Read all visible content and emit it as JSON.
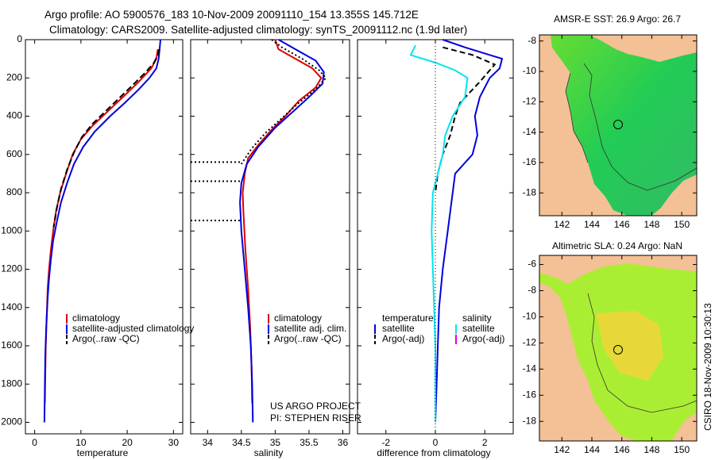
{
  "title_line1": "Argo profile: AO 5900576_183 10-Nov-2009 20091110_154 13.355S 145.712E",
  "title_line2": "Climatology: CARS2009. Satellite-adjusted climatology: synTS_20091112.nc (1.9d later)",
  "credit_project": "US ARGO PROJECT",
  "credit_pi": "PI: STEPHEN RISER",
  "footer_stamp": "CSIRO 18-Nov-2009 10:30:13",
  "colors": {
    "climatology": "#dd0000",
    "satellite": "#0000dd",
    "argo": "#000000",
    "salinity_satellite": "#00e5ee",
    "salinity_argo": "#dd00dd"
  },
  "chart_data": [
    {
      "type": "line",
      "xlabel": "temperature",
      "ylabel": "",
      "xlim": [
        -2,
        32
      ],
      "ylim": [
        2060,
        0
      ],
      "xticks": [
        0,
        10,
        20,
        30
      ],
      "yticks": [
        0,
        200,
        400,
        600,
        800,
        1000,
        1200,
        1400,
        1600,
        1800,
        2000
      ],
      "legend": {
        "placement": "bottom-right",
        "entries": [
          "climatology",
          "satellite-adjusted climatology",
          "Argo(..raw -QC)"
        ]
      },
      "series": [
        {
          "name": "climatology",
          "color": "#dd0000",
          "dash": "",
          "points": [
            [
              26.6,
              50
            ],
            [
              26.3,
              100
            ],
            [
              25.2,
              150
            ],
            [
              22.5,
              220
            ],
            [
              19.5,
              290
            ],
            [
              16.0,
              370
            ],
            [
              12.5,
              450
            ],
            [
              10.0,
              520
            ],
            [
              8.2,
              600
            ],
            [
              6.8,
              700
            ],
            [
              5.5,
              800
            ],
            [
              4.6,
              900
            ],
            [
              4.0,
              1000
            ],
            [
              3.5,
              1100
            ],
            [
              3.1,
              1200
            ],
            [
              2.8,
              1300
            ],
            [
              2.6,
              1450
            ],
            [
              2.4,
              1600
            ],
            [
              2.3,
              1750
            ],
            [
              2.2,
              1900
            ]
          ]
        },
        {
          "name": "satellite-adjusted climatology",
          "color": "#0000dd",
          "dash": "",
          "points": [
            [
              27.2,
              0
            ],
            [
              27.0,
              50
            ],
            [
              26.8,
              100
            ],
            [
              26.3,
              150
            ],
            [
              24.8,
              200
            ],
            [
              22.5,
              260
            ],
            [
              19.5,
              330
            ],
            [
              16.3,
              400
            ],
            [
              13.0,
              480
            ],
            [
              10.5,
              560
            ],
            [
              8.5,
              650
            ],
            [
              7.0,
              750
            ],
            [
              5.7,
              850
            ],
            [
              4.8,
              950
            ],
            [
              4.0,
              1050
            ],
            [
              3.5,
              1150
            ],
            [
              3.1,
              1250
            ],
            [
              2.8,
              1350
            ],
            [
              2.5,
              1500
            ],
            [
              2.3,
              1650
            ],
            [
              2.2,
              1800
            ],
            [
              2.1,
              2000
            ]
          ]
        },
        {
          "name": "Argo(..raw -QC)",
          "color": "#000000",
          "dash": "8,4",
          "points": [
            [
              26.9,
              50
            ],
            [
              26.6,
              80
            ],
            [
              25.8,
              120
            ],
            [
              24.0,
              170
            ],
            [
              21.5,
              230
            ],
            [
              18.5,
              300
            ],
            [
              15.5,
              370
            ],
            [
              12.5,
              440
            ],
            [
              10.2,
              510
            ],
            [
              8.5,
              590
            ],
            [
              7.0,
              680
            ],
            [
              5.7,
              780
            ],
            [
              4.8,
              880
            ],
            [
              4.1,
              980
            ]
          ]
        }
      ]
    },
    {
      "type": "line",
      "xlabel": "salinity",
      "ylabel": "",
      "xlim": [
        33.75,
        36.1
      ],
      "ylim": [
        2060,
        0
      ],
      "xticks": [
        34,
        34.5,
        35,
        35.5,
        36
      ],
      "legend": {
        "placement": "bottom-right",
        "entries": [
          "climatology",
          "satellite adj. clim.",
          "Argo(..raw -QC)"
        ]
      },
      "series": [
        {
          "name": "climatology",
          "color": "#dd0000",
          "dash": "",
          "points": [
            [
              35.0,
              0
            ],
            [
              35.05,
              50
            ],
            [
              35.3,
              100
            ],
            [
              35.55,
              150
            ],
            [
              35.68,
              200
            ],
            [
              35.6,
              250
            ],
            [
              35.35,
              320
            ],
            [
              35.15,
              400
            ],
            [
              34.95,
              470
            ],
            [
              34.75,
              550
            ],
            [
              34.6,
              620
            ],
            [
              34.55,
              700
            ],
            [
              34.52,
              800
            ],
            [
              34.53,
              900
            ],
            [
              34.56,
              1100
            ],
            [
              34.6,
              1300
            ],
            [
              34.63,
              1500
            ],
            [
              34.65,
              1700
            ],
            [
              34.66,
              1900
            ]
          ]
        },
        {
          "name": "satellite adj. clim.",
          "color": "#0000dd",
          "dash": "",
          "points": [
            [
              35.05,
              0
            ],
            [
              35.3,
              50
            ],
            [
              35.6,
              110
            ],
            [
              35.72,
              170
            ],
            [
              35.7,
              230
            ],
            [
              35.5,
              300
            ],
            [
              35.25,
              380
            ],
            [
              35.0,
              460
            ],
            [
              34.75,
              560
            ],
            [
              34.58,
              650
            ],
            [
              34.5,
              750
            ],
            [
              34.48,
              850
            ],
            [
              34.5,
              1000
            ],
            [
              34.55,
              1200
            ],
            [
              34.6,
              1400
            ],
            [
              34.64,
              1600
            ],
            [
              34.66,
              1800
            ],
            [
              34.67,
              2000
            ]
          ]
        },
        {
          "name": "Argo(..raw -QC)",
          "color": "#000000",
          "dash": "2,3",
          "points": [
            [
              34.95,
              0
            ],
            [
              35.1,
              40
            ],
            [
              35.4,
              100
            ],
            [
              35.65,
              160
            ],
            [
              35.75,
              200
            ],
            [
              35.6,
              260
            ],
            [
              35.35,
              330
            ],
            [
              35.1,
              410
            ],
            [
              34.85,
              490
            ],
            [
              34.65,
              570
            ],
            [
              34.5,
              650
            ]
          ]
        },
        {
          "name": "",
          "color": "#000000",
          "dash": "2,3",
          "points": [
            [
              33.75,
              640
            ],
            [
              34.5,
              640
            ]
          ]
        },
        {
          "name": "",
          "color": "#000000",
          "dash": "2,3",
          "points": [
            [
              33.75,
              740
            ],
            [
              34.5,
              740
            ]
          ]
        },
        {
          "name": "",
          "color": "#000000",
          "dash": "2,3",
          "points": [
            [
              33.75,
              945
            ],
            [
              34.5,
              945
            ]
          ]
        }
      ]
    },
    {
      "type": "line",
      "xlabel": "difference from climatology",
      "ylabel": "",
      "xlim": [
        -3.15,
        3.15
      ],
      "ylim": [
        2060,
        0
      ],
      "xticks": [
        -2,
        0,
        2
      ],
      "legend": {
        "placement": "bottom",
        "entries": [
          "temperature",
          "satellite",
          "Argo(-adj)",
          "salinity",
          "satellite",
          "Argo(-adj)"
        ]
      },
      "series": [
        {
          "name": "temperature satellite",
          "color": "#0000dd",
          "dash": "",
          "points": [
            [
              0.3,
              0
            ],
            [
              1.2,
              40
            ],
            [
              2.2,
              80
            ],
            [
              2.7,
              100
            ],
            [
              2.6,
              150
            ],
            [
              2.2,
              200
            ],
            [
              1.8,
              300
            ],
            [
              1.6,
              400
            ],
            [
              1.7,
              500
            ],
            [
              1.5,
              600
            ],
            [
              0.8,
              700
            ],
            [
              0.7,
              800
            ],
            [
              0.5,
              1000
            ],
            [
              0.3,
              1200
            ],
            [
              0.15,
              1400
            ],
            [
              0.1,
              1600
            ],
            [
              0.05,
              1800
            ],
            [
              0.0,
              2000
            ]
          ]
        },
        {
          "name": "temperature Argo(-adj)",
          "color": "#000000",
          "dash": "7,4",
          "points": [
            [
              0.3,
              40
            ],
            [
              1.5,
              80
            ],
            [
              2.4,
              130
            ],
            [
              1.8,
              220
            ],
            [
              1.0,
              330
            ],
            [
              0.8,
              400
            ],
            [
              0.6,
              500
            ],
            [
              0.3,
              600
            ],
            [
              0.1,
              700
            ],
            [
              0.0,
              800
            ]
          ]
        },
        {
          "name": "salinity satellite",
          "color": "#00e5ee",
          "dash": "",
          "points": [
            [
              -0.8,
              30
            ],
            [
              -1.0,
              80
            ],
            [
              0.0,
              120
            ],
            [
              0.8,
              160
            ],
            [
              1.3,
              200
            ],
            [
              1.2,
              300
            ],
            [
              0.7,
              400
            ],
            [
              0.4,
              500
            ],
            [
              0.3,
              600
            ],
            [
              0.1,
              700
            ],
            [
              -0.1,
              800
            ],
            [
              -0.15,
              1000
            ],
            [
              -0.1,
              1200
            ],
            [
              -0.05,
              1400
            ],
            [
              0.0,
              1600
            ],
            [
              0.0,
              1800
            ],
            [
              0.0,
              2000
            ]
          ]
        },
        {
          "name": "",
          "color": "#000000",
          "dash": "1,3",
          "points": [
            [
              0,
              0
            ],
            [
              0,
              2060
            ]
          ]
        }
      ]
    },
    {
      "type": "heatmap",
      "title": "AMSR-E SST: 26.9 Argo: 26.7",
      "xlim": [
        140.5,
        151
      ],
      "ylim": [
        -19.5,
        -7.6
      ],
      "xticks": [
        142,
        144,
        146,
        148,
        150
      ],
      "yticks": [
        -8,
        -10,
        -12,
        -14,
        -16,
        -18
      ],
      "argo_position": [
        145.712,
        -13.355
      ]
    },
    {
      "type": "heatmap",
      "title": "Altimetric SLA: 0.24 Argo: NaN",
      "xlim": [
        140.5,
        151
      ],
      "ylim": [
        -19.5,
        -5.3
      ],
      "xticks": [
        142,
        144,
        146,
        148,
        150
      ],
      "yticks": [
        -6,
        -8,
        -10,
        -12,
        -14,
        -16,
        -18
      ],
      "argo_position": [
        145.712,
        -13.355
      ]
    }
  ]
}
